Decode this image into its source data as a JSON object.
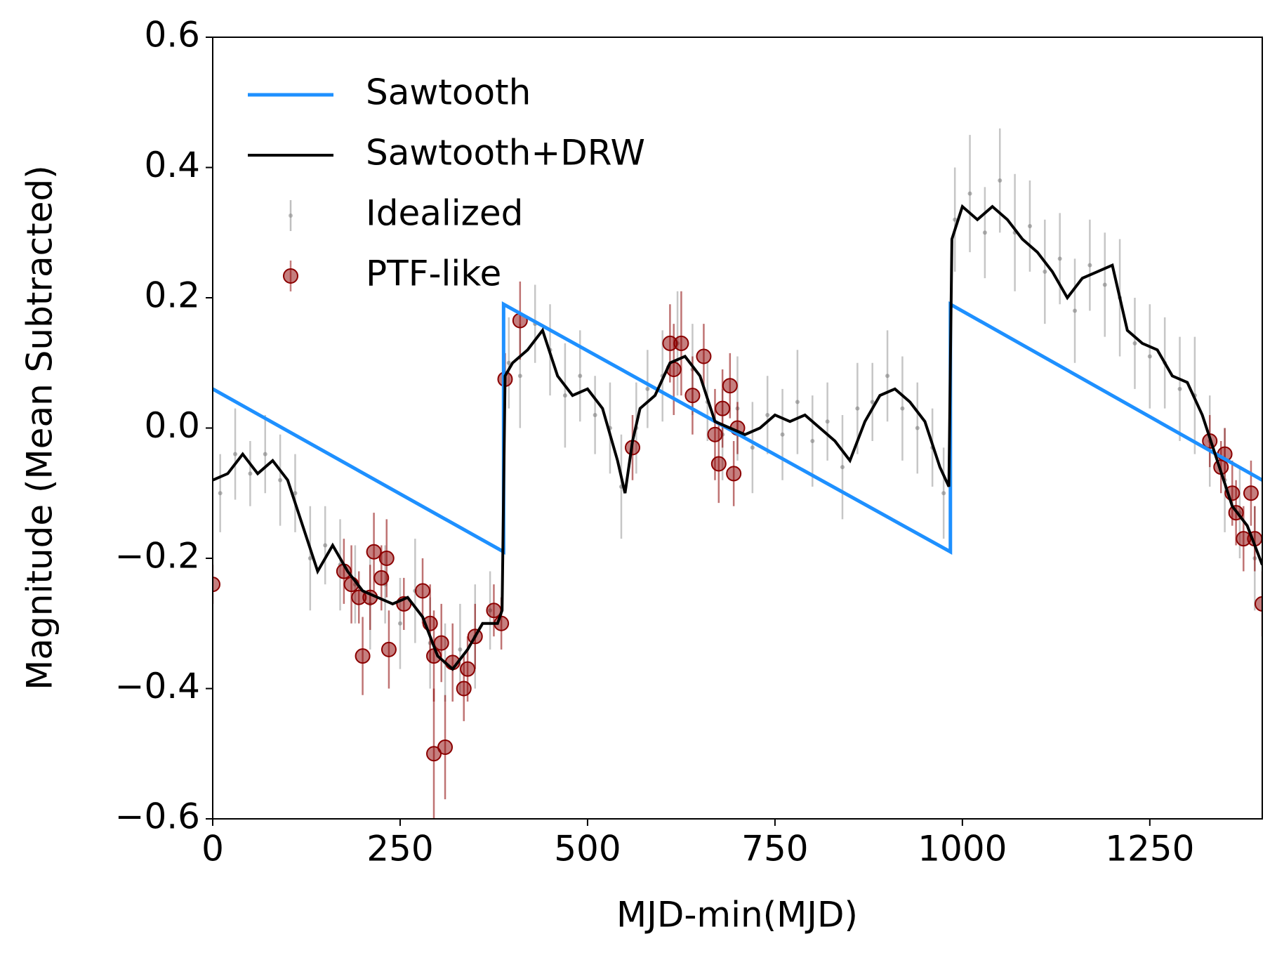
{
  "chart_data": {
    "type": "line",
    "xlabel": "MJD-min(MJD)",
    "ylabel": "Magnitude (Mean Subtracted)",
    "xlim": [
      0,
      1400
    ],
    "ylim": [
      -0.6,
      0.6
    ],
    "xticks": [
      0,
      250,
      500,
      750,
      1000,
      1250
    ],
    "yticks": [
      0.6,
      0.4,
      0.2,
      {
        "value": 0,
        "label": "0.0"
      },
      {
        "value": -0.2,
        "label": "−0.2"
      },
      {
        "value": -0.4,
        "label": "−0.4"
      },
      {
        "value": -0.6,
        "label": "−0.6"
      }
    ],
    "legend": "upper left",
    "series": [
      {
        "name": "Sawtooth",
        "kind": "line",
        "color": "#1e90ff",
        "x": [
          0,
          388,
          388,
          984,
          984,
          1400
        ],
        "values": [
          0.06,
          -0.19,
          0.19,
          -0.19,
          0.19,
          -0.08
        ]
      },
      {
        "name": "Sawtooth+DRW",
        "kind": "line",
        "color": "#000000",
        "x": [
          0,
          20,
          40,
          60,
          80,
          100,
          120,
          140,
          160,
          180,
          200,
          220,
          240,
          260,
          280,
          300,
          320,
          340,
          360,
          380,
          386,
          390,
          400,
          420,
          440,
          460,
          480,
          500,
          520,
          540,
          550,
          560,
          570,
          590,
          610,
          630,
          650,
          670,
          690,
          710,
          730,
          750,
          770,
          790,
          810,
          830,
          850,
          870,
          890,
          910,
          930,
          950,
          970,
          982,
          986,
          1000,
          1020,
          1040,
          1060,
          1080,
          1100,
          1120,
          1140,
          1160,
          1180,
          1200,
          1220,
          1240,
          1260,
          1280,
          1300,
          1320,
          1340,
          1360,
          1380,
          1400
        ],
        "values": [
          -0.08,
          -0.07,
          -0.04,
          -0.07,
          -0.05,
          -0.08,
          -0.15,
          -0.22,
          -0.18,
          -0.22,
          -0.25,
          -0.26,
          -0.27,
          -0.26,
          -0.29,
          -0.35,
          -0.37,
          -0.34,
          -0.3,
          -0.3,
          -0.28,
          0.08,
          0.1,
          0.12,
          0.15,
          0.08,
          0.05,
          0.06,
          0.03,
          -0.05,
          -0.1,
          -0.02,
          0.03,
          0.05,
          0.1,
          0.11,
          0.08,
          0.01,
          0,
          -0.01,
          0,
          0.02,
          0.01,
          0.02,
          0,
          -0.02,
          -0.05,
          0.01,
          0.05,
          0.06,
          0.04,
          0.01,
          -0.06,
          -0.09,
          0.29,
          0.34,
          0.32,
          0.34,
          0.32,
          0.29,
          0.27,
          0.24,
          0.2,
          0.23,
          0.24,
          0.25,
          0.15,
          0.13,
          0.12,
          0.08,
          0.07,
          0.02,
          -0.05,
          -0.12,
          -0.15,
          -0.21
        ]
      },
      {
        "name": "Idealized",
        "kind": "errorbar",
        "marker": "dot",
        "color": "#808080",
        "x": [
          10,
          30,
          50,
          70,
          90,
          110,
          130,
          150,
          170,
          190,
          210,
          230,
          250,
          270,
          290,
          310,
          330,
          350,
          370,
          395,
          410,
          430,
          450,
          470,
          490,
          510,
          530,
          545,
          565,
          580,
          600,
          620,
          640,
          660,
          680,
          700,
          720,
          740,
          760,
          780,
          800,
          820,
          840,
          860,
          880,
          900,
          920,
          940,
          960,
          975,
          990,
          1010,
          1030,
          1050,
          1070,
          1090,
          1110,
          1130,
          1150,
          1170,
          1190,
          1210,
          1230,
          1250,
          1270,
          1290,
          1310,
          1330,
          1350,
          1370,
          1390
        ],
        "values": [
          -0.1,
          -0.04,
          -0.07,
          -0.04,
          -0.08,
          -0.1,
          -0.2,
          -0.18,
          -0.21,
          -0.24,
          -0.27,
          -0.24,
          -0.3,
          -0.25,
          -0.33,
          -0.36,
          -0.34,
          -0.32,
          -0.28,
          0.1,
          0.08,
          0.16,
          0.12,
          0.05,
          0.08,
          0.02,
          0.0,
          -0.09,
          0.0,
          0.06,
          0.08,
          0.13,
          0.09,
          0.04,
          -0.01,
          0.03,
          -0.03,
          0.02,
          -0.01,
          0.04,
          -0.02,
          0.01,
          -0.06,
          0.03,
          0.04,
          0.08,
          0.03,
          0.0,
          -0.03,
          -0.1,
          0.32,
          0.36,
          0.3,
          0.38,
          0.3,
          0.31,
          0.24,
          0.26,
          0.18,
          0.25,
          0.22,
          0.2,
          0.13,
          0.11,
          0.1,
          0.06,
          0.05,
          -0.02,
          -0.08,
          -0.13,
          -0.2
        ],
        "errors": [
          0.06,
          0.07,
          0.05,
          0.06,
          0.07,
          0.06,
          0.08,
          0.06,
          0.07,
          0.06,
          0.07,
          0.06,
          0.07,
          0.08,
          0.07,
          0.06,
          0.07,
          0.08,
          0.06,
          0.07,
          0.08,
          0.06,
          0.07,
          0.08,
          0.07,
          0.06,
          0.07,
          0.08,
          0.07,
          0.06,
          0.07,
          0.08,
          0.07,
          0.06,
          0.07,
          0.08,
          0.07,
          0.06,
          0.07,
          0.08,
          0.07,
          0.06,
          0.08,
          0.07,
          0.06,
          0.07,
          0.08,
          0.07,
          0.06,
          0.07,
          0.08,
          0.09,
          0.07,
          0.08,
          0.09,
          0.07,
          0.08,
          0.07,
          0.08,
          0.07,
          0.08,
          0.09,
          0.07,
          0.08,
          0.07,
          0.08,
          0.09,
          0.07,
          0.08,
          0.07,
          0.08
        ]
      },
      {
        "name": "PTF-like",
        "kind": "errorbar",
        "marker": "circle",
        "color": "#8b0000",
        "x": [
          0,
          175,
          185,
          195,
          200,
          210,
          215,
          225,
          232,
          235,
          255,
          280,
          290,
          295,
          295,
          305,
          310,
          320,
          335,
          340,
          350,
          375,
          385,
          390,
          410,
          560,
          610,
          615,
          625,
          640,
          655,
          670,
          675,
          680,
          690,
          695,
          700,
          1330,
          1345,
          1350,
          1360,
          1365,
          1375,
          1385,
          1390,
          1400
        ],
        "values": [
          -0.24,
          -0.22,
          -0.24,
          -0.26,
          -0.35,
          -0.26,
          -0.19,
          -0.23,
          -0.2,
          -0.34,
          -0.27,
          -0.25,
          -0.3,
          -0.35,
          -0.5,
          -0.33,
          -0.49,
          -0.36,
          -0.4,
          -0.37,
          -0.32,
          -0.28,
          -0.3,
          0.075,
          0.165,
          -0.03,
          0.13,
          0.09,
          0.13,
          0.05,
          0.11,
          -0.01,
          -0.055,
          0.03,
          0.065,
          -0.07,
          0,
          -0.02,
          -0.06,
          -0.04,
          -0.1,
          -0.13,
          -0.17,
          -0.1,
          -0.17,
          -0.27
        ],
        "errors": [
          0.03,
          0.05,
          0.06,
          0.04,
          0.06,
          0.05,
          0.06,
          0.05,
          0.06,
          0.06,
          0.04,
          0.05,
          0.06,
          0.07,
          0.1,
          0.06,
          0.08,
          0.06,
          0.05,
          0.05,
          0.05,
          0.04,
          0.04,
          0.04,
          0.06,
          0.05,
          0.06,
          0.07,
          0.08,
          0.06,
          0.05,
          0.07,
          0.06,
          0.06,
          0.05,
          0.05,
          0.04,
          0.04,
          0.04,
          0.04,
          0.05,
          0.05,
          0.05,
          0.05,
          0.05,
          0.05
        ]
      }
    ]
  }
}
